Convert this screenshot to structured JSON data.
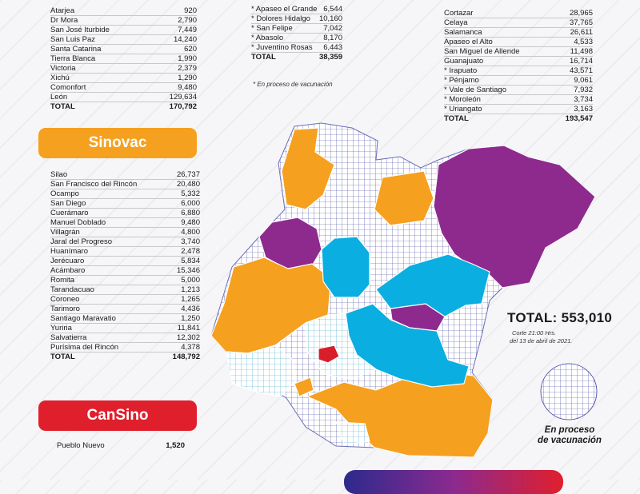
{
  "left_top_table": {
    "rows": [
      {
        "name": "Atarjea",
        "value": "920"
      },
      {
        "name": "Dr Mora",
        "value": "2,790"
      },
      {
        "name": "San José Iturbide",
        "value": "7,449"
      },
      {
        "name": "San Luis Paz",
        "value": "14,240"
      },
      {
        "name": "Santa Catarina",
        "value": "620"
      },
      {
        "name": "Tierra Blanca",
        "value": "1,990"
      },
      {
        "name": "Victoria",
        "value": "2,379"
      },
      {
        "name": "Xichú",
        "value": "1,290"
      },
      {
        "name": "Comonfort",
        "value": "9,480"
      },
      {
        "name": "León",
        "value": "129,634"
      }
    ],
    "total_label": "TOTAL",
    "total_value": "170,792"
  },
  "middle_table": {
    "rows": [
      {
        "name": "* Apaseo el Grande",
        "value": "6,544"
      },
      {
        "name": "* Dolores Hidalgo",
        "value": "10,160"
      },
      {
        "name": "* San Felipe",
        "value": "7,042"
      },
      {
        "name": "* Abasolo",
        "value": "8,170"
      },
      {
        "name": "* Juventino Rosas",
        "value": "6,443"
      }
    ],
    "total_label": "TOTAL",
    "total_value": "38,359",
    "note": "* En proceso de vacunación"
  },
  "right_table": {
    "rows": [
      {
        "name": "Cortazar",
        "value": "28,965"
      },
      {
        "name": "Celaya",
        "value": "37,765"
      },
      {
        "name": "Salamanca",
        "value": "26,611"
      },
      {
        "name": "Apaseo el Alto",
        "value": "4,533"
      },
      {
        "name": "San Miguel de Allende",
        "value": "11,498"
      },
      {
        "name": "Guanajuato",
        "value": "16,714"
      },
      {
        "name": "* Irapuato",
        "value": "43,571"
      },
      {
        "name": "* Pénjamo",
        "value": "9,061"
      },
      {
        "name": "* Vale de Santiago",
        "value": "7,932"
      },
      {
        "name": "* Moroleón",
        "value": "3,734"
      },
      {
        "name": "* Uriangato",
        "value": "3,163"
      }
    ],
    "total_label": "TOTAL",
    "total_value": "193,547"
  },
  "sinovac": {
    "title": "Sinovac",
    "rows": [
      {
        "name": "Silao",
        "value": "26,737"
      },
      {
        "name": "San Francisco del Rincón",
        "value": "20,480"
      },
      {
        "name": "Ocampo",
        "value": "5,332"
      },
      {
        "name": "San Diego",
        "value": "6,000"
      },
      {
        "name": "Cuerámaro",
        "value": "6,880"
      },
      {
        "name": "Manuel Doblado",
        "value": "9,480"
      },
      {
        "name": "Villagrán",
        "value": "4,800"
      },
      {
        "name": "Jaral del Progreso",
        "value": "3,740"
      },
      {
        "name": "Huanímaro",
        "value": "2,478"
      },
      {
        "name": "Jerécuaro",
        "value": "5,834"
      },
      {
        "name": "Acámbaro",
        "value": "15,346"
      },
      {
        "name": "Romita",
        "value": "5,000"
      },
      {
        "name": "Tarandacuao",
        "value": "1,213"
      },
      {
        "name": "Coroneo",
        "value": "1,265"
      },
      {
        "name": "Tarimoro",
        "value": "4,436"
      },
      {
        "name": "Santiago Maravatio",
        "value": "1,250"
      },
      {
        "name": "Yuriria",
        "value": "11,841"
      },
      {
        "name": "Salvatierra",
        "value": "12,302"
      },
      {
        "name": "Purísima del Rincón",
        "value": "4,378"
      }
    ],
    "total_label": "TOTAL",
    "total_value": "148,792"
  },
  "cansino": {
    "title": "CanSino",
    "rows": [
      {
        "name": "Pueblo Nuevo",
        "value": "1,520"
      }
    ]
  },
  "summary": {
    "total": "TOTAL: 553,010",
    "cutoff_line1": "Corte 21:00 Hrs.",
    "cutoff_line2": "del 13 de abril de 2021."
  },
  "legend": {
    "line1": "En proceso",
    "line2": "de vacunación",
    "pattern": "grid-hatch"
  },
  "colors": {
    "purple": "#8e2a8e",
    "blue": "#0aaee0",
    "orange": "#f5a01f",
    "red": "#d81e2b",
    "grid_line": "#3a3d9c",
    "sinovac_banner": "#f5a01f",
    "cansino_banner": "#e01f2d"
  }
}
